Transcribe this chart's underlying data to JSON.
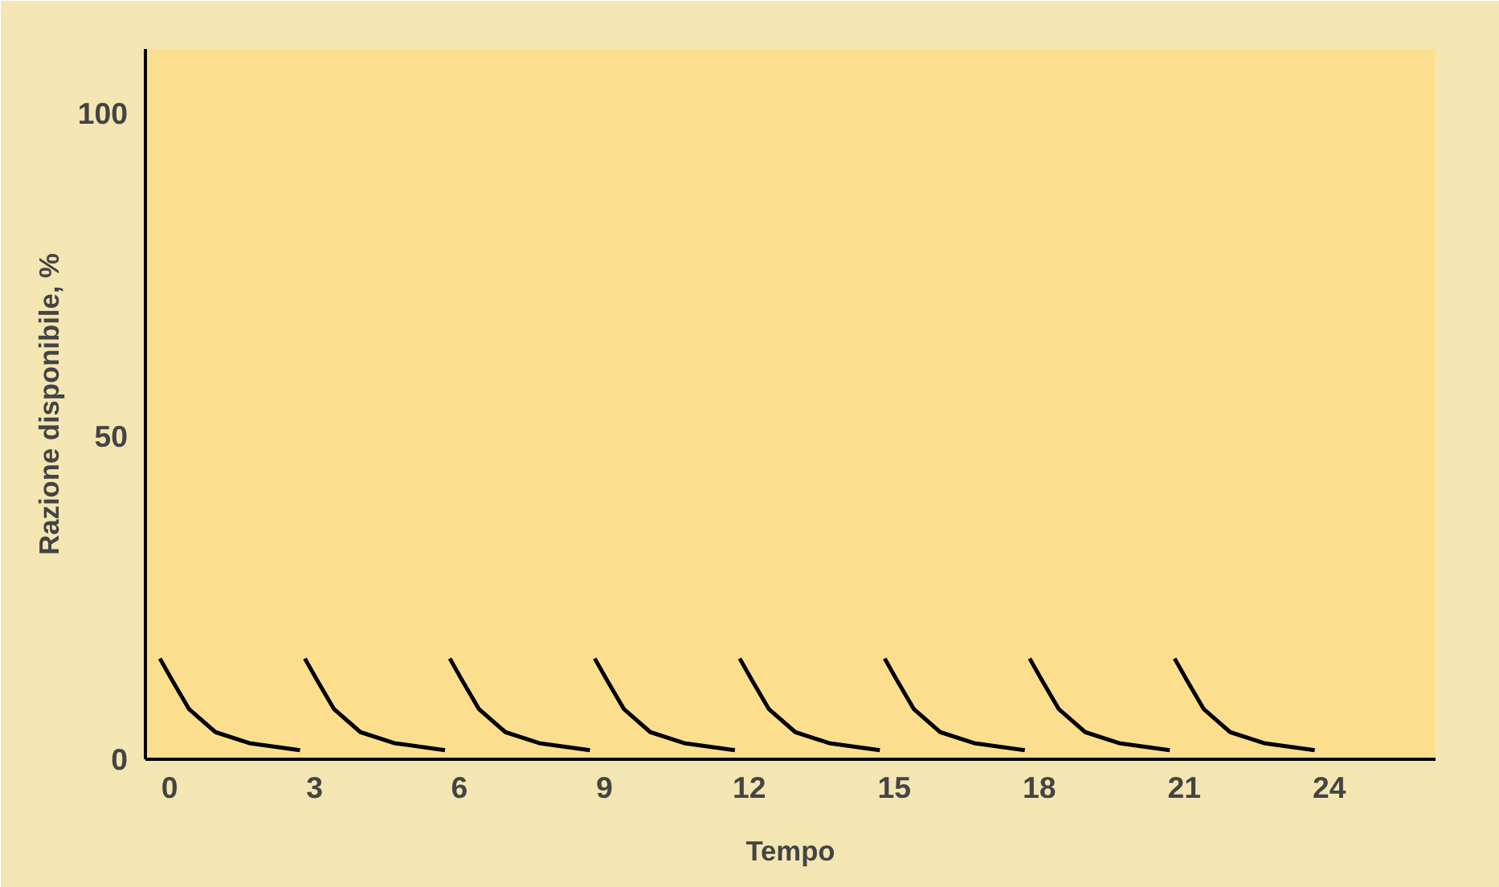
{
  "chart_data": {
    "type": "line",
    "xlabel": "Tempo",
    "ylabel": "Razione disponibile, %",
    "xlim": [
      -0.5,
      26.2
    ],
    "ylim": [
      0,
      110
    ],
    "xticks": [
      0,
      3,
      6,
      9,
      12,
      15,
      18,
      21,
      24
    ],
    "yticks": [
      0,
      50,
      100
    ],
    "grid": false,
    "marker": "none",
    "line_style": "solid",
    "series": [
      {
        "color": "#000000",
        "x": [
          -0.2,
          0.05,
          0.4,
          0.95,
          1.65,
          2.7
        ],
        "values": [
          15.6,
          12.3,
          7.8,
          4.2,
          2.5,
          1.4
        ]
      },
      {
        "color": "#000000",
        "x": [
          2.8,
          3.05,
          3.4,
          3.95,
          4.65,
          5.7
        ],
        "values": [
          15.6,
          12.3,
          7.8,
          4.2,
          2.5,
          1.4
        ]
      },
      {
        "color": "#000000",
        "x": [
          5.8,
          6.05,
          6.4,
          6.95,
          7.65,
          8.7
        ],
        "values": [
          15.6,
          12.3,
          7.8,
          4.2,
          2.5,
          1.4
        ]
      },
      {
        "color": "#000000",
        "x": [
          8.8,
          9.05,
          9.4,
          9.95,
          10.65,
          11.7
        ],
        "values": [
          15.6,
          12.3,
          7.8,
          4.2,
          2.5,
          1.4
        ]
      },
      {
        "color": "#000000",
        "x": [
          11.8,
          12.05,
          12.4,
          12.95,
          13.65,
          14.7
        ],
        "values": [
          15.6,
          12.3,
          7.8,
          4.2,
          2.5,
          1.4
        ]
      },
      {
        "color": "#000000",
        "x": [
          14.8,
          15.05,
          15.4,
          15.95,
          16.65,
          17.7
        ],
        "values": [
          15.6,
          12.3,
          7.8,
          4.2,
          2.5,
          1.4
        ]
      },
      {
        "color": "#000000",
        "x": [
          17.8,
          18.05,
          18.4,
          18.95,
          19.65,
          20.7
        ],
        "values": [
          15.6,
          12.3,
          7.8,
          4.2,
          2.5,
          1.4
        ]
      },
      {
        "color": "#000000",
        "x": [
          20.8,
          21.05,
          21.4,
          21.95,
          22.65,
          23.7
        ],
        "values": [
          15.6,
          12.3,
          7.8,
          4.2,
          2.5,
          1.4
        ]
      }
    ]
  }
}
